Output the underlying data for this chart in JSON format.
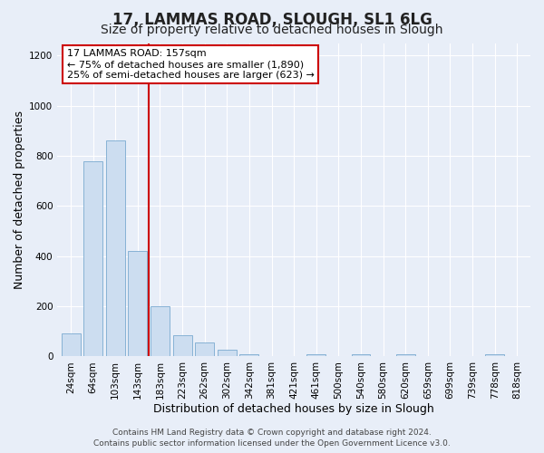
{
  "title": "17, LAMMAS ROAD, SLOUGH, SL1 6LG",
  "subtitle": "Size of property relative to detached houses in Slough",
  "xlabel": "Distribution of detached houses by size in Slough",
  "ylabel": "Number of detached properties",
  "categories": [
    "24sqm",
    "64sqm",
    "103sqm",
    "143sqm",
    "183sqm",
    "223sqm",
    "262sqm",
    "302sqm",
    "342sqm",
    "381sqm",
    "421sqm",
    "461sqm",
    "500sqm",
    "540sqm",
    "580sqm",
    "620sqm",
    "659sqm",
    "699sqm",
    "739sqm",
    "778sqm",
    "818sqm"
  ],
  "values": [
    90,
    780,
    860,
    420,
    200,
    85,
    55,
    25,
    10,
    0,
    0,
    10,
    0,
    10,
    0,
    10,
    0,
    0,
    0,
    10,
    0
  ],
  "bar_color": "#ccddf0",
  "bar_edge_color": "#7aaad0",
  "vline_color": "#cc0000",
  "vline_x_index": 3.5,
  "annotation_title": "17 LAMMAS ROAD: 157sqm",
  "annotation_line1": "← 75% of detached houses are smaller (1,890)",
  "annotation_line2": "25% of semi-detached houses are larger (623) →",
  "annotation_box_color": "#ffffff",
  "annotation_box_edge": "#cc0000",
  "ylim": [
    0,
    1250
  ],
  "yticks": [
    0,
    200,
    400,
    600,
    800,
    1000,
    1200
  ],
  "footer_line1": "Contains HM Land Registry data © Crown copyright and database right 2024.",
  "footer_line2": "Contains public sector information licensed under the Open Government Licence v3.0.",
  "background_color": "#e8eef8",
  "plot_bg_color": "#e8eef8",
  "title_fontsize": 12,
  "subtitle_fontsize": 10,
  "axis_label_fontsize": 9,
  "tick_fontsize": 7.5,
  "annotation_fontsize": 8,
  "footer_fontsize": 6.5
}
